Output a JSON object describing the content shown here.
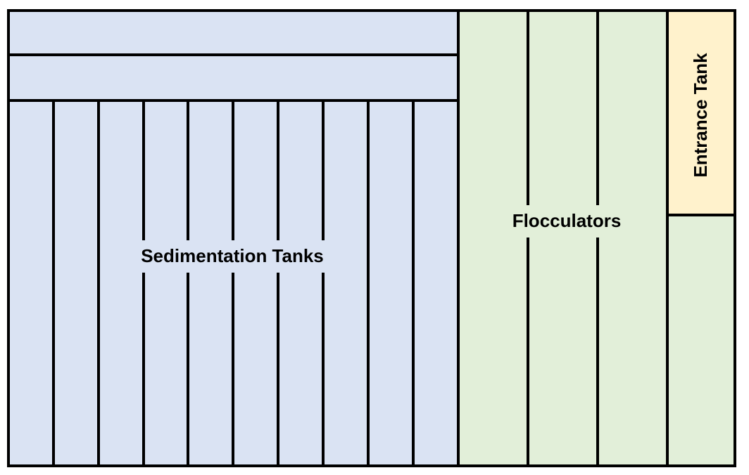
{
  "diagram": {
    "labels": {
      "sedimentation": "Sedimentation Tanks",
      "flocculators": "Flocculators",
      "entrance": "Entrance Tank"
    },
    "colors": {
      "sedimentation_fill": "#dae3f3",
      "flocculator_fill": "#e2efd9",
      "entrance_fill": "#fff2cc",
      "wall": "#000000"
    }
  }
}
